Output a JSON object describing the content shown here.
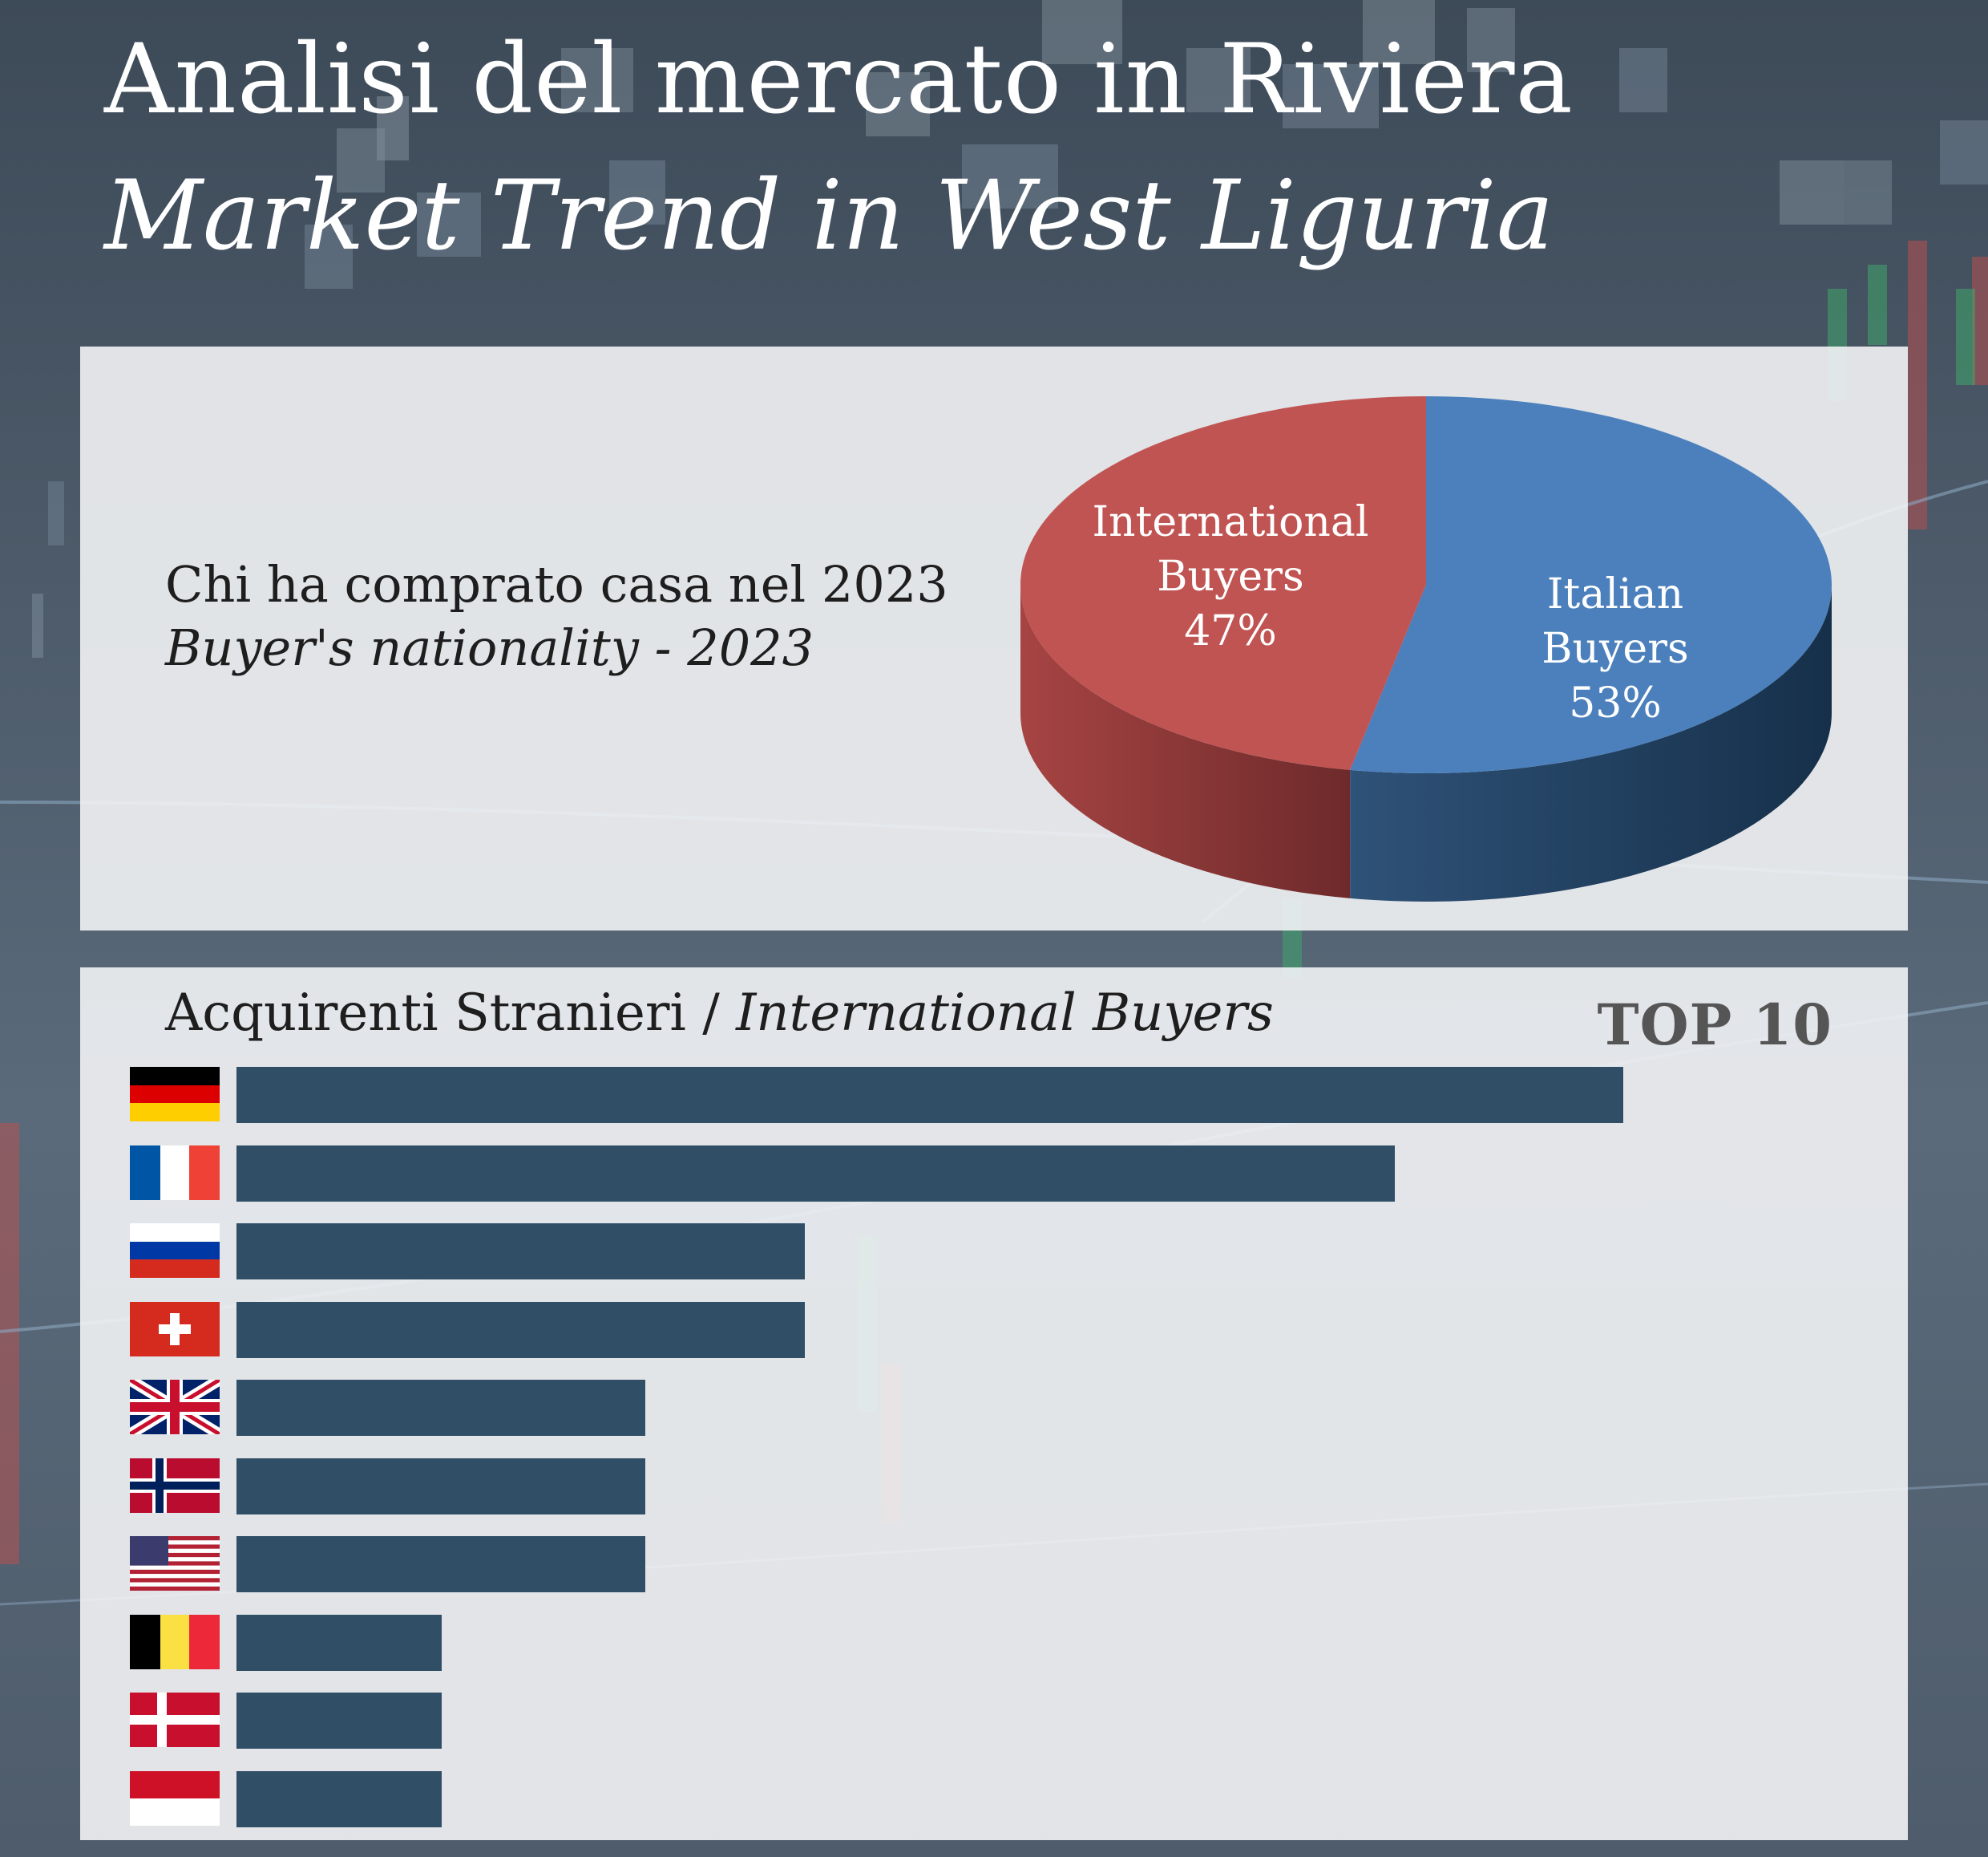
{
  "title": {
    "line1": "Analisi del mercato in Riviera",
    "line2": "Market Trend in West Liguria"
  },
  "pie_section": {
    "heading": "Chi ha comprato casa nel 2023",
    "subheading": "Buyer's nationality - 2023"
  },
  "bars_section": {
    "heading": "Acquirenti Stranieri / ",
    "heading_italic": "International Buyers",
    "badge": "TOP 10"
  },
  "colors": {
    "international": "#c05453",
    "italian": "#4b80bc",
    "bar": "#304e66"
  },
  "chart_data": [
    {
      "type": "pie",
      "slices": [
        {
          "label_line1": "International",
          "label_line2": "Buyers",
          "percent_label": "47%",
          "value": 47,
          "color": "#c05453"
        },
        {
          "label_line1": "Italian",
          "label_line2": "Buyers",
          "percent_label": "53%",
          "value": 53,
          "color": "#4b80bc"
        }
      ]
    },
    {
      "type": "bar",
      "orientation": "horizontal",
      "categories": [
        "germany-flag",
        "france-flag",
        "russia-flag",
        "switzerland-flag",
        "uk-flag",
        "norway-flag",
        "usa-flag",
        "belgium-flag",
        "denmark-flag",
        "indonesia-flag"
      ],
      "values": [
        100,
        83.5,
        41,
        41,
        29.5,
        29.5,
        29.5,
        14.8,
        14.8,
        14.8
      ],
      "xlim": [
        0,
        100
      ]
    }
  ]
}
